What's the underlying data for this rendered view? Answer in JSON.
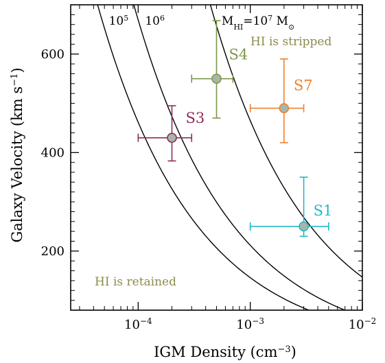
{
  "chart_data": {
    "type": "scatter",
    "xlabel": "IGM Density (cm",
    "xlabel_sup": "−3",
    "xlabel_close": ")",
    "ylabel": "Galaxy Velocity (km s",
    "ylabel_sup": "−1",
    "ylabel_close": ")",
    "x_scale": "log",
    "xlim": [
      2.5e-05,
      0.01
    ],
    "ylim": [
      80,
      700
    ],
    "x_ticks": [
      {
        "value": 0.0001,
        "base": "10",
        "exp": "−4"
      },
      {
        "value": 0.001,
        "base": "10",
        "exp": "−3"
      },
      {
        "value": 0.01,
        "base": "10",
        "exp": "−2"
      }
    ],
    "y_ticks": [
      {
        "value": 200,
        "label": "200"
      },
      {
        "value": 400,
        "label": "400"
      },
      {
        "value": 600,
        "label": "600"
      }
    ],
    "grid": false,
    "curves": [
      {
        "label_base": "10",
        "label_exp": "5",
        "p_v2": 21.3
      },
      {
        "label_base": "10",
        "label_exp": "6",
        "p_v2": 44.8
      },
      {
        "label_prefix": "M",
        "label_sub": "HI",
        "label_mid": "=10",
        "label_exp": "7",
        "label_unit": "M",
        "label_unit_sym": "⊙",
        "p_v2": 216
      }
    ],
    "points": [
      {
        "name": "S1",
        "x": 0.003,
        "y": 250,
        "x_lo": 0.001,
        "x_hi": 0.005,
        "y_lo": 230,
        "y_hi": 350,
        "color": "#22b8c6"
      },
      {
        "name": "S3",
        "x": 0.0002,
        "y": 430,
        "x_lo": 0.0001,
        "x_hi": 0.0003,
        "y_lo": 383,
        "y_hi": 495,
        "color": "#8e2a5b"
      },
      {
        "name": "S4",
        "x": 0.0005,
        "y": 550,
        "x_lo": 0.0003,
        "x_hi": 0.0007,
        "y_lo": 470,
        "y_hi": 668,
        "color": "#7d9648"
      },
      {
        "name": "S7",
        "x": 0.002,
        "y": 490,
        "x_lo": 0.001,
        "x_hi": 0.003,
        "y_lo": 420,
        "y_hi": 590,
        "color": "#f0802e"
      }
    ],
    "marker_fill": "#a8b5ab",
    "annotations": [
      {
        "text": "HI is stripped",
        "color": "#8f8a4b"
      },
      {
        "text": "HI is retained",
        "color": "#8f8a4b"
      }
    ]
  }
}
